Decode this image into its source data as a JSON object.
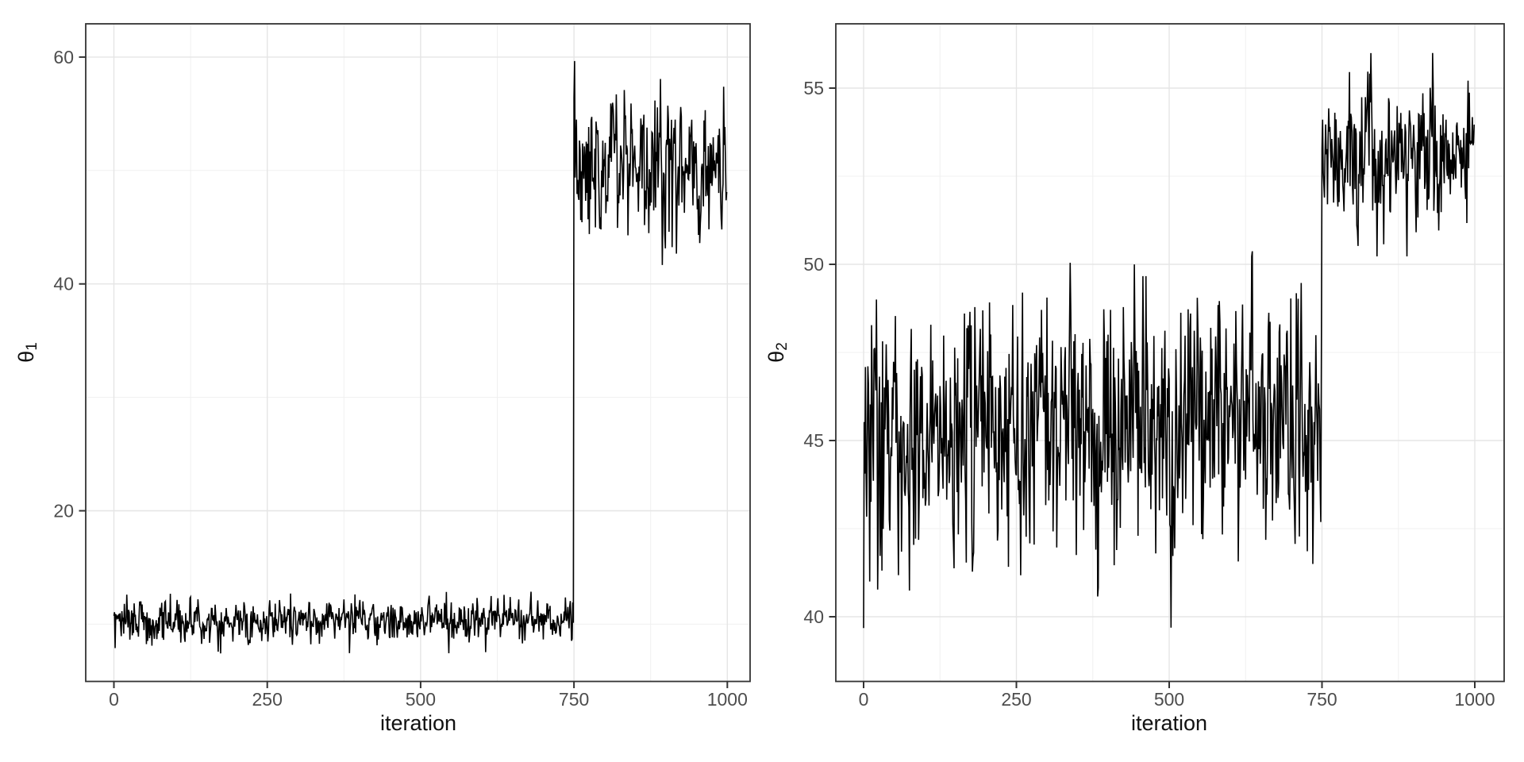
{
  "figure": {
    "background": "#ffffff",
    "description": "Two side-by-side MCMC trace plots with a changepoint at iteration 750"
  },
  "theme": {
    "panel_border_color": "#333333",
    "grid_major_color": "#e5e5e5",
    "grid_minor_color": "#f0f0f0",
    "tick_color": "#333333",
    "tick_label_color": "#4d4d4d",
    "axis_title_color": "#111111",
    "trace_color": "#000000"
  },
  "chart_data": [
    {
      "type": "line",
      "title": "",
      "xlabel": "iteration",
      "ylabel": {
        "symbol": "θ",
        "subscript": "1"
      },
      "x_ticks": [
        0,
        250,
        500,
        750,
        1000
      ],
      "x_tick_labels": [
        "0",
        "250",
        "500",
        "750",
        "1000"
      ],
      "x_minor_ticks": [
        125,
        375,
        625,
        875
      ],
      "y_ticks": [
        20,
        40,
        60
      ],
      "y_tick_labels": [
        "20",
        "40",
        "60"
      ],
      "y_minor_ticks": [
        10,
        30,
        50
      ],
      "xlim": [
        -46,
        1037
      ],
      "ylim": [
        4.9,
        62.9
      ],
      "grid": "major+minor",
      "legend": "none",
      "line_color": "#000000",
      "n_points": 1000,
      "changepoint_x": 750,
      "seed": 20240507,
      "ar1": 0.2,
      "segments": [
        {
          "from": 0,
          "to": 749,
          "mean": 10.3,
          "mean_end": 10.3,
          "sd": 0.95,
          "min": 7.4,
          "max": 13.6
        },
        {
          "from": 750,
          "to": 999,
          "mean": 50.4,
          "mean_end": 50.4,
          "sd": 3.1,
          "min": 37.8,
          "max": 60.5
        }
      ]
    },
    {
      "type": "line",
      "title": "",
      "xlabel": "iteration",
      "ylabel": {
        "symbol": "θ",
        "subscript": "2"
      },
      "x_ticks": [
        0,
        250,
        500,
        750,
        1000
      ],
      "x_tick_labels": [
        "0",
        "250",
        "500",
        "750",
        "1000"
      ],
      "x_minor_ticks": [
        125,
        375,
        625,
        875
      ],
      "y_ticks": [
        40,
        45,
        50,
        55
      ],
      "y_tick_labels": [
        "40",
        "45",
        "50",
        "55"
      ],
      "y_minor_ticks": [
        42.5,
        47.5,
        52.5
      ],
      "xlim": [
        -46,
        1048
      ],
      "ylim": [
        38.1,
        56.8
      ],
      "grid": "major+minor",
      "legend": "none",
      "line_color": "#000000",
      "n_points": 1000,
      "changepoint_x": 750,
      "seed": 987654,
      "ar1": 0.2,
      "segments": [
        {
          "from": 0,
          "to": 749,
          "mean": 45.1,
          "mean_end": 45.6,
          "sd": 1.8,
          "min": 39.0,
          "max": 52.0
        },
        {
          "from": 750,
          "to": 999,
          "mean": 53.15,
          "mean_end": 53.15,
          "sd": 1.05,
          "min": 50.2,
          "max": 56.0
        }
      ]
    }
  ]
}
